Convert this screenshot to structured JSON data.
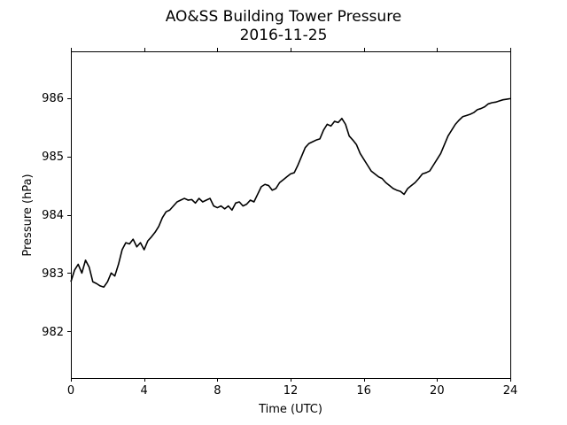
{
  "chart_data": {
    "type": "line",
    "title": "AO&SS Building Tower Pressure",
    "subtitle": "2016-11-25",
    "xlabel": "Time (UTC)",
    "ylabel": "Pressure (hPa)",
    "xlim": [
      0,
      24
    ],
    "ylim": [
      981.2,
      986.8
    ],
    "xticks": [
      0,
      4,
      8,
      12,
      16,
      20,
      24
    ],
    "yticks": [
      982,
      983,
      984,
      985,
      986
    ],
    "grid": false,
    "series": [
      {
        "color": "#000000",
        "x": [
          0,
          0.2,
          0.4,
          0.6,
          0.8,
          1.0,
          1.2,
          1.4,
          1.6,
          1.8,
          2.0,
          2.2,
          2.4,
          2.6,
          2.8,
          3.0,
          3.2,
          3.4,
          3.6,
          3.8,
          4.0,
          4.2,
          4.4,
          4.6,
          4.8,
          5.0,
          5.2,
          5.4,
          5.6,
          5.8,
          6.0,
          6.2,
          6.4,
          6.6,
          6.8,
          7.0,
          7.2,
          7.4,
          7.6,
          7.8,
          8.0,
          8.2,
          8.4,
          8.6,
          8.8,
          9.0,
          9.2,
          9.4,
          9.6,
          9.8,
          10.0,
          10.2,
          10.4,
          10.6,
          10.8,
          11.0,
          11.2,
          11.4,
          11.6,
          11.8,
          12.0,
          12.2,
          12.4,
          12.6,
          12.8,
          13.0,
          13.2,
          13.4,
          13.6,
          13.8,
          14.0,
          14.2,
          14.4,
          14.6,
          14.8,
          15.0,
          15.2,
          15.4,
          15.6,
          15.8,
          16.0,
          16.2,
          16.4,
          16.6,
          16.8,
          17.0,
          17.2,
          17.4,
          17.6,
          17.8,
          18.0,
          18.2,
          18.4,
          18.6,
          18.8,
          19.0,
          19.2,
          19.4,
          19.6,
          19.8,
          20.0,
          20.2,
          20.4,
          20.6,
          20.8,
          21.0,
          21.2,
          21.4,
          21.6,
          21.8,
          22.0,
          22.2,
          22.4,
          22.6,
          22.8,
          23.0,
          23.2,
          23.4,
          23.6,
          23.8,
          24.0
        ],
        "values": [
          982.85,
          983.05,
          983.15,
          983.0,
          983.22,
          983.1,
          982.85,
          982.82,
          982.78,
          982.76,
          982.85,
          983.0,
          982.95,
          983.15,
          983.4,
          983.52,
          983.5,
          983.58,
          983.45,
          983.52,
          983.4,
          983.55,
          983.62,
          983.7,
          983.8,
          983.95,
          984.05,
          984.08,
          984.15,
          984.22,
          984.25,
          984.28,
          984.25,
          984.26,
          984.2,
          984.28,
          984.22,
          984.25,
          984.28,
          984.15,
          984.12,
          984.15,
          984.1,
          984.15,
          984.08,
          984.2,
          984.22,
          984.15,
          984.18,
          984.25,
          984.22,
          984.35,
          984.48,
          984.52,
          984.5,
          984.42,
          984.45,
          984.55,
          984.6,
          984.65,
          984.7,
          984.72,
          984.85,
          985.0,
          985.15,
          985.22,
          985.25,
          985.28,
          985.3,
          985.45,
          985.55,
          985.52,
          985.6,
          985.58,
          985.65,
          985.55,
          985.35,
          985.28,
          985.2,
          985.05,
          984.95,
          984.85,
          984.75,
          984.7,
          984.65,
          984.62,
          984.55,
          984.5,
          984.45,
          984.42,
          984.4,
          984.35,
          984.45,
          984.5,
          984.55,
          984.62,
          984.7,
          984.72,
          984.75,
          984.85,
          984.95,
          985.05,
          985.2,
          985.35,
          985.45,
          985.55,
          985.62,
          985.68,
          985.7,
          985.72,
          985.75,
          985.8,
          985.82,
          985.85,
          985.9,
          985.92,
          985.93,
          985.95,
          985.97,
          985.98,
          985.99
        ]
      }
    ]
  }
}
